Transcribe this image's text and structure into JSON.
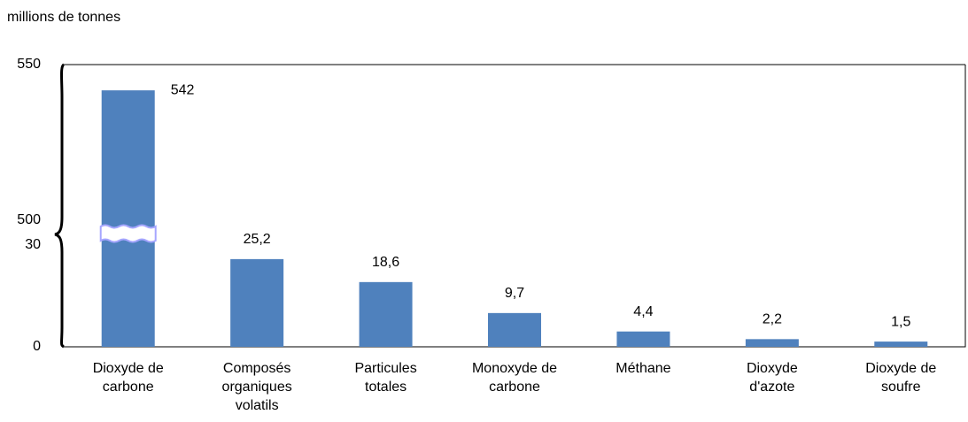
{
  "chart_data": {
    "type": "bar",
    "y_label": "millions de tonnes",
    "categories": [
      "Dioxyde de carbone",
      "Composés organiques volatils",
      "Particules totales",
      "Monoxyde de carbone",
      "Méthane",
      "Dioxyde d'azote",
      "Dioxyde de soufre"
    ],
    "values": [
      542,
      25.2,
      18.6,
      9.7,
      4.4,
      2.2,
      1.5
    ],
    "value_labels": [
      "542",
      "25,2",
      "18,6",
      "9,7",
      "4,4",
      "2,2",
      "1,5"
    ],
    "color": "#4f81bd",
    "ylim": [
      0,
      550
    ],
    "axis_break": [
      30,
      500
    ],
    "yticks": [
      0,
      30,
      500,
      550
    ],
    "grid": false
  }
}
